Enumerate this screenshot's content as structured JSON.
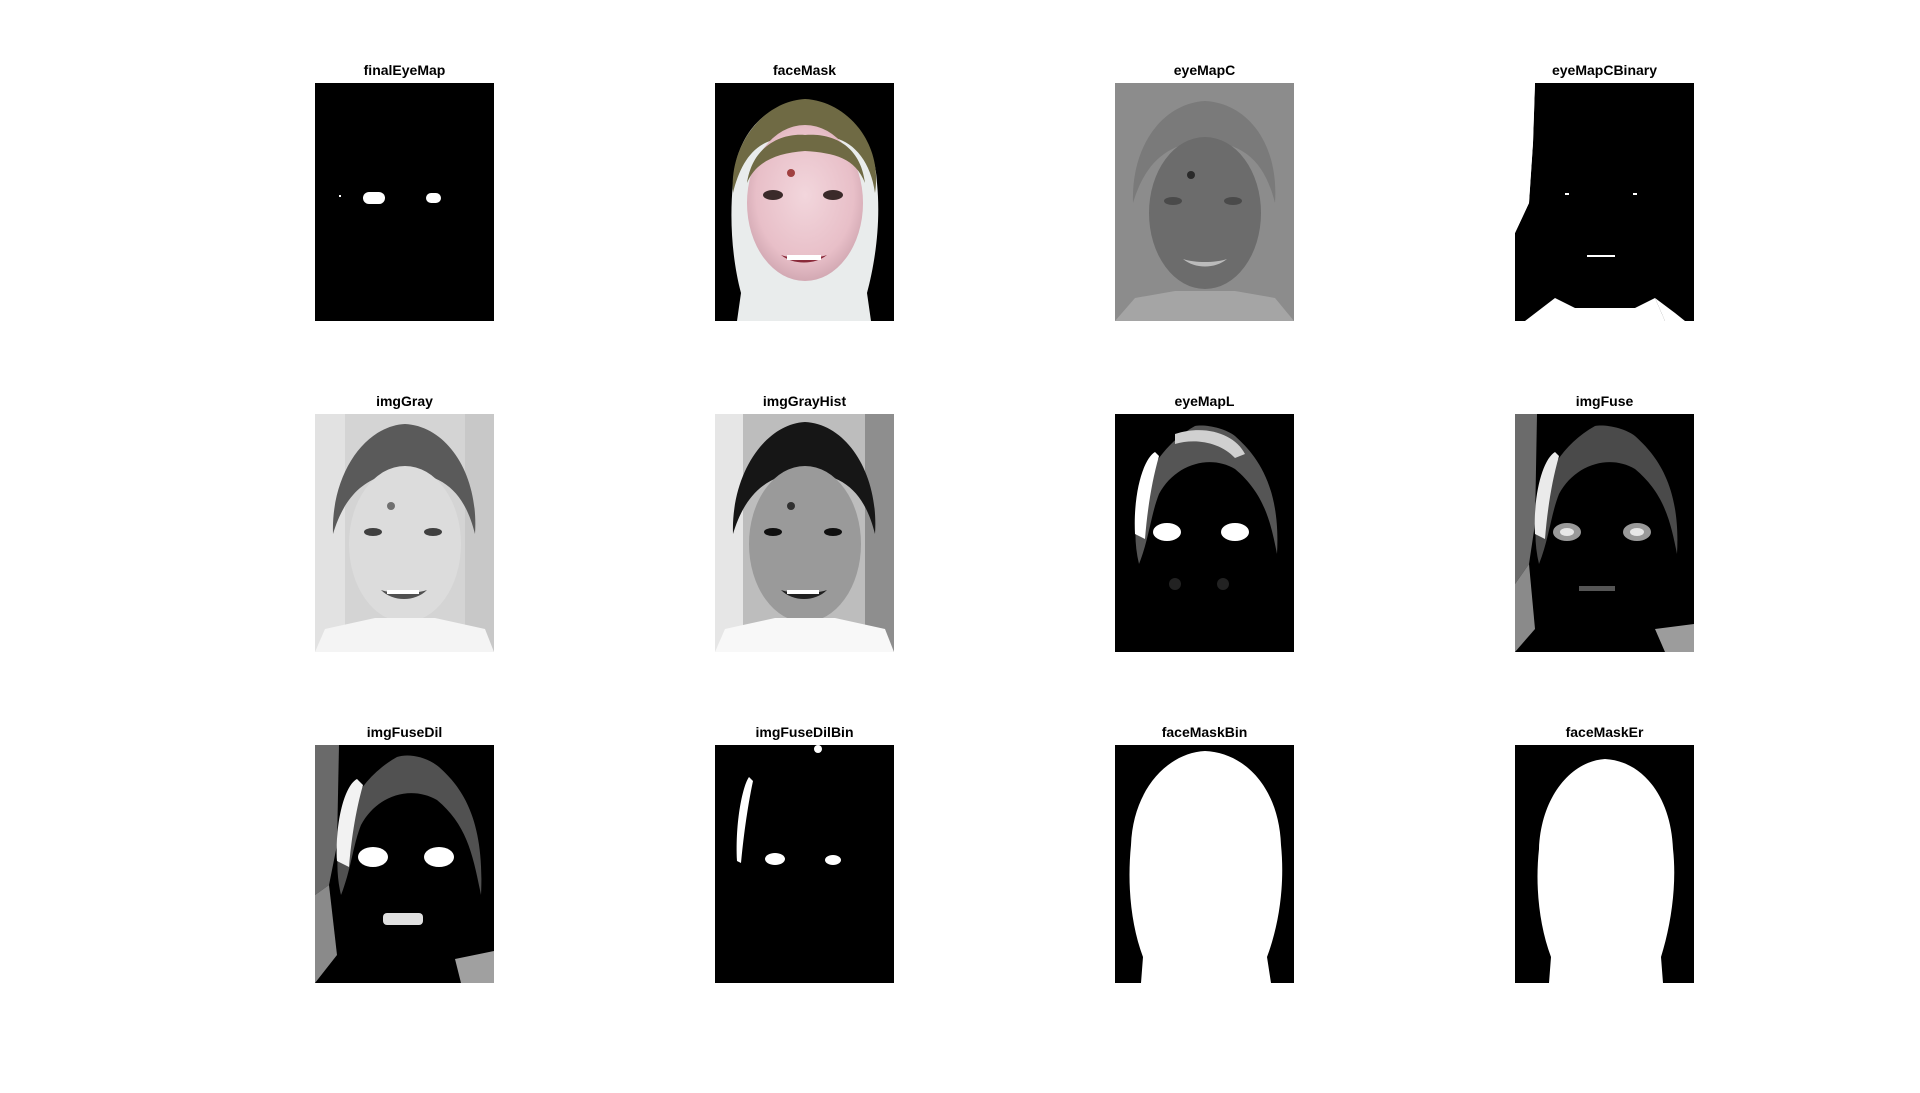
{
  "figure": {
    "panels": [
      {
        "title": "finalEyeMap"
      },
      {
        "title": "faceMask"
      },
      {
        "title": "eyeMapC"
      },
      {
        "title": "eyeMapCBinary"
      },
      {
        "title": "imgGray"
      },
      {
        "title": "imgGrayHist"
      },
      {
        "title": "eyeMapL"
      },
      {
        "title": "imgFuse"
      },
      {
        "title": "imgFuseDil"
      },
      {
        "title": "imgFuseDilBin"
      },
      {
        "title": "faceMaskBin"
      },
      {
        "title": "faceMaskEr"
      }
    ]
  }
}
